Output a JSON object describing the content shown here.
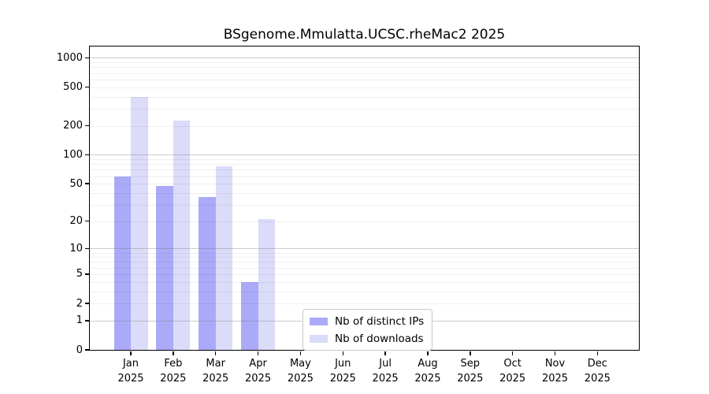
{
  "chart_data": {
    "type": "bar",
    "title": "BSgenome.Mmulatta.UCSC.rheMac2 2025",
    "x_categories": [
      "Jan",
      "Feb",
      "Mar",
      "Apr",
      "May",
      "Jun",
      "Jul",
      "Aug",
      "Sep",
      "Oct",
      "Nov",
      "Dec"
    ],
    "x_year": "2025",
    "y_ticks": [
      0,
      1,
      2,
      5,
      10,
      20,
      50,
      100,
      200,
      500,
      1000
    ],
    "y_scale": "log1p",
    "ylim": [
      0,
      1300
    ],
    "grid": "horizontal, minor 2-9 per decade, drawn over bars",
    "legend_position": "bottom-center-inside",
    "series": [
      {
        "name": "Nb of distinct IPs",
        "color": "#aaaaf8",
        "values": [
          60,
          47,
          36,
          4,
          0,
          0,
          0,
          0,
          0,
          0,
          0,
          0
        ]
      },
      {
        "name": "Nb of downloads",
        "color": "#dbdbfa",
        "values": [
          400,
          228,
          76,
          21,
          0,
          0,
          0,
          0,
          0,
          0,
          0,
          0
        ]
      }
    ],
    "colors": {
      "distinct_ips_bar": "#aaaaf8",
      "downloads_bar": "#dbdbfa",
      "grid_major": "#c9c9c9",
      "grid_minor": "#efefef",
      "axis": "#000000",
      "legend_border": "#c8c8c8",
      "background": "#ffffff"
    }
  }
}
